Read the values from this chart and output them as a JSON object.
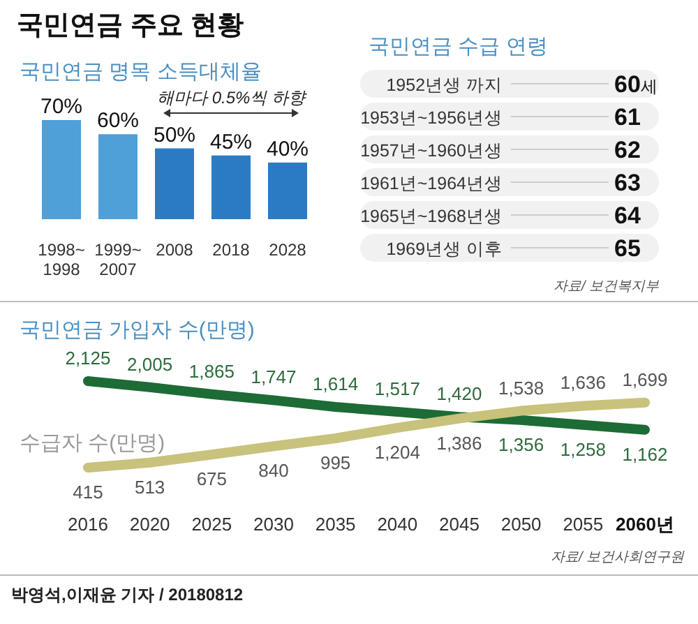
{
  "chart_data": [
    {
      "type": "bar",
      "title": "국민연금 주요 현황",
      "subtitle": "국민연금 명목 소득대체율",
      "categories": [
        "1998~1998",
        "1999~2007",
        "2008",
        "2018",
        "2028"
      ],
      "values": [
        70,
        60,
        50,
        45,
        40
      ],
      "colors": [
        "#4f9fd8",
        "#4f9fd8",
        "#2b7bc4",
        "#2b7bc4",
        "#2b7bc4"
      ],
      "value_labels": [
        "70%",
        "60%",
        "50%",
        "45%",
        "40%"
      ],
      "annotations": [
        "해마다 0.5%씩 하향"
      ]
    },
    {
      "type": "other",
      "title": "국민연금 수급 연령",
      "categories": [
        "1952년생 까지",
        "1953년~1956년생",
        "1957년~1960년생",
        "1961년~1964년생",
        "1965년~1968년생",
        "1969년생 이후"
      ],
      "values": [
        60,
        61,
        62,
        63,
        64,
        65
      ],
      "value_labels": [
        "60세",
        "61",
        "62",
        "63",
        "64",
        "65"
      ],
      "annotations": [
        "자료/ 보건복지부"
      ]
    },
    {
      "type": "line",
      "categories": [
        "2016",
        "2020",
        "2025",
        "2030",
        "2035",
        "2040",
        "2045",
        "2050",
        "2055",
        "2060년"
      ],
      "data_labels": true,
      "series": [
        {
          "name": "국민연금 가입자 수(만명)",
          "color": "#1d6b35",
          "values": [
            2125,
            2005,
            1865,
            1747,
            1614,
            1517,
            1420,
            1356,
            1258,
            1162
          ],
          "value_labels": [
            "2,125",
            "2,005",
            "1,865",
            "1,747",
            "1,614",
            "1,517",
            "1,420",
            "1,356",
            "1,258",
            "1,162"
          ]
        },
        {
          "name": "수급자 수(만명)",
          "color": "#c8c27c",
          "values": [
            415,
            513,
            675,
            840,
            995,
            1204,
            1386,
            1538,
            1636,
            1699
          ],
          "value_labels": [
            "415",
            "513",
            "675",
            "840",
            "995",
            "1,204",
            "1,386",
            "1,538",
            "1,636",
            "1,699"
          ]
        }
      ],
      "annotations": [
        "자료/ 보건사회연구원",
        "박영석,이재윤 기자 / 20180812"
      ]
    }
  ]
}
